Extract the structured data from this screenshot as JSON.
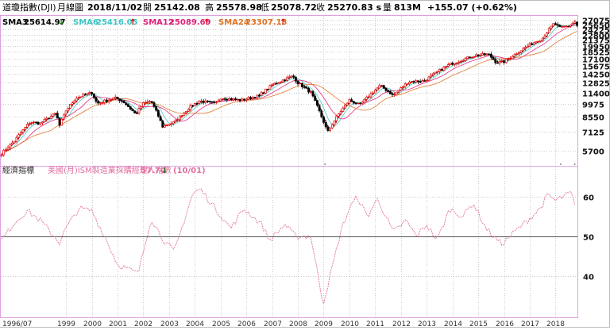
{
  "header": {
    "index_name": "道瓊指數(DJI)",
    "period": "月線圖",
    "date": "2018/11/02",
    "open_label": "開",
    "open": "25142.08",
    "high_label": "高",
    "high": "25578.98",
    "low_label": "低",
    "low": "25078.72",
    "close_label": "收",
    "close": "25270.83 s",
    "volume_label": "量",
    "volume": "813M",
    "change": "+155.07 (+0.62%)"
  },
  "sma": [
    {
      "label": "SMA3",
      "value": "25614.97",
      "arrow": "↓",
      "color": "#000000",
      "arrow_color": "#008000"
    },
    {
      "label": "SMA6",
      "value": "25416.05",
      "arrow": "↑",
      "color": "#3cc6c6",
      "arrow_color": "#e00000"
    },
    {
      "label": "SMA12",
      "value": "25089.69",
      "arrow": "↑",
      "color": "#e0207a",
      "arrow_color": "#e00000"
    },
    {
      "label": "SMA24",
      "value": "23307.13",
      "arrow": "↑",
      "color": "#e07020",
      "arrow_color": "#e00000"
    }
  ],
  "indicator": {
    "panel_label": "經濟指標",
    "name": "美國(月)ISM製造業採購經理人指數",
    "value": "57.70",
    "arrow": "↓",
    "date": "(10/01)",
    "color": "#e070a0"
  },
  "colors": {
    "up": "#e00000",
    "down": "#000000",
    "grid": "#cccccc",
    "frame": "#e0a0e0",
    "ref_line": "#555555"
  },
  "chart_data": [
    {
      "type": "candlestick",
      "title": "道瓊指數(DJI) 月線圖",
      "y_scale": "log",
      "ylim": [
        4800,
        28500
      ],
      "yticks": [
        5700,
        7125,
        8550,
        9975,
        11400,
        12825,
        14250,
        15675,
        17100,
        18525,
        19950,
        21375,
        22800,
        24225,
        25650,
        27075
      ],
      "x_start": "1996/07",
      "x_end": "2018/11",
      "xticks": [
        "1996/07",
        "1999",
        "2000",
        "2001",
        "2002",
        "2003",
        "2004",
        "2005",
        "2006",
        "2007",
        "2008",
        "2009",
        "2010",
        "2011",
        "2012",
        "2013",
        "2014",
        "2015",
        "2016",
        "2017",
        "2018"
      ],
      "key_points": [
        {
          "t": 1996.5,
          "v": 5500
        },
        {
          "t": 1997.0,
          "v": 6400
        },
        {
          "t": 1997.6,
          "v": 8000
        },
        {
          "t": 1998.0,
          "v": 7900
        },
        {
          "t": 1998.6,
          "v": 8900
        },
        {
          "t": 1998.75,
          "v": 7700
        },
        {
          "t": 1999.0,
          "v": 9200
        },
        {
          "t": 1999.4,
          "v": 10700
        },
        {
          "t": 2000.0,
          "v": 11400
        },
        {
          "t": 2000.2,
          "v": 10000
        },
        {
          "t": 2000.9,
          "v": 10700
        },
        {
          "t": 2001.2,
          "v": 10300
        },
        {
          "t": 2001.7,
          "v": 8800
        },
        {
          "t": 2002.0,
          "v": 10000
        },
        {
          "t": 2002.3,
          "v": 10300
        },
        {
          "t": 2002.75,
          "v": 7600
        },
        {
          "t": 2003.2,
          "v": 8000
        },
        {
          "t": 2003.9,
          "v": 9800
        },
        {
          "t": 2004.2,
          "v": 10300
        },
        {
          "t": 2004.8,
          "v": 10000
        },
        {
          "t": 2005.0,
          "v": 10700
        },
        {
          "t": 2005.8,
          "v": 10400
        },
        {
          "t": 2006.5,
          "v": 11000
        },
        {
          "t": 2007.0,
          "v": 12500
        },
        {
          "t": 2007.8,
          "v": 13900
        },
        {
          "t": 2008.0,
          "v": 12800
        },
        {
          "t": 2008.5,
          "v": 11400
        },
        {
          "t": 2008.8,
          "v": 9300
        },
        {
          "t": 2009.15,
          "v": 7100
        },
        {
          "t": 2009.5,
          "v": 8500
        },
        {
          "t": 2010.0,
          "v": 10400
        },
        {
          "t": 2010.4,
          "v": 9800
        },
        {
          "t": 2011.2,
          "v": 12400
        },
        {
          "t": 2011.7,
          "v": 11000
        },
        {
          "t": 2012.3,
          "v": 13000
        },
        {
          "t": 2012.9,
          "v": 13100
        },
        {
          "t": 2013.9,
          "v": 16000
        },
        {
          "t": 2014.9,
          "v": 17800
        },
        {
          "t": 2015.4,
          "v": 18000
        },
        {
          "t": 2015.7,
          "v": 16300
        },
        {
          "t": 2016.0,
          "v": 16500
        },
        {
          "t": 2016.5,
          "v": 18300
        },
        {
          "t": 2016.9,
          "v": 19800
        },
        {
          "t": 2017.5,
          "v": 21900
        },
        {
          "t": 2017.95,
          "v": 26100
        },
        {
          "t": 2018.15,
          "v": 24700
        },
        {
          "t": 2018.5,
          "v": 25300
        },
        {
          "t": 2018.75,
          "v": 26500
        },
        {
          "t": 2018.84,
          "v": 25270
        }
      ]
    },
    {
      "type": "line",
      "title": "美國(月)ISM製造業採購經理人指數",
      "ylim": [
        30,
        64
      ],
      "yticks": [
        40,
        50,
        60
      ],
      "reference_line": 50,
      "series": [
        {
          "name": "美國(月)ISM製造業採購經理人指數",
          "points": [
            {
              "t": 1996.5,
              "v": 49
            },
            {
              "t": 1997.0,
              "v": 53.5
            },
            {
              "t": 1997.5,
              "v": 56.5
            },
            {
              "t": 1998.0,
              "v": 54
            },
            {
              "t": 1998.75,
              "v": 48.5
            },
            {
              "t": 1999.0,
              "v": 52
            },
            {
              "t": 1999.5,
              "v": 57
            },
            {
              "t": 2000.0,
              "v": 56.5
            },
            {
              "t": 2000.5,
              "v": 50
            },
            {
              "t": 2001.0,
              "v": 43
            },
            {
              "t": 2001.5,
              "v": 41.5
            },
            {
              "t": 2001.8,
              "v": 40.5
            },
            {
              "t": 2002.3,
              "v": 54.5
            },
            {
              "t": 2002.8,
              "v": 49
            },
            {
              "t": 2003.2,
              "v": 46
            },
            {
              "t": 2003.9,
              "v": 60.5
            },
            {
              "t": 2004.2,
              "v": 62
            },
            {
              "t": 2004.8,
              "v": 57
            },
            {
              "t": 2005.4,
              "v": 52
            },
            {
              "t": 2005.9,
              "v": 57
            },
            {
              "t": 2006.6,
              "v": 53
            },
            {
              "t": 2006.9,
              "v": 49
            },
            {
              "t": 2007.5,
              "v": 53
            },
            {
              "t": 2007.9,
              "v": 50
            },
            {
              "t": 2008.5,
              "v": 50
            },
            {
              "t": 2008.9,
              "v": 36
            },
            {
              "t": 2008.98,
              "v": 33
            },
            {
              "t": 2009.4,
              "v": 44
            },
            {
              "t": 2009.7,
              "v": 52
            },
            {
              "t": 2010.0,
              "v": 57
            },
            {
              "t": 2010.3,
              "v": 60
            },
            {
              "t": 2010.7,
              "v": 55
            },
            {
              "t": 2011.1,
              "v": 59.5
            },
            {
              "t": 2011.7,
              "v": 51
            },
            {
              "t": 2012.2,
              "v": 54
            },
            {
              "t": 2012.6,
              "v": 50
            },
            {
              "t": 2013.0,
              "v": 53
            },
            {
              "t": 2013.4,
              "v": 49
            },
            {
              "t": 2013.9,
              "v": 57
            },
            {
              "t": 2014.4,
              "v": 55
            },
            {
              "t": 2014.8,
              "v": 58.5
            },
            {
              "t": 2015.3,
              "v": 52
            },
            {
              "t": 2015.9,
              "v": 48
            },
            {
              "t": 2016.3,
              "v": 50.5
            },
            {
              "t": 2016.9,
              "v": 54
            },
            {
              "t": 2017.4,
              "v": 57
            },
            {
              "t": 2017.7,
              "v": 60.5
            },
            {
              "t": 2018.0,
              "v": 59
            },
            {
              "t": 2018.6,
              "v": 61
            },
            {
              "t": 2018.75,
              "v": 57.7
            }
          ]
        }
      ]
    }
  ]
}
